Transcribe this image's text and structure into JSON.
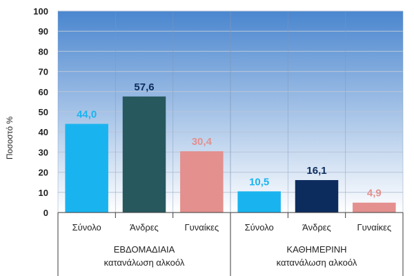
{
  "chart_data": {
    "type": "bar",
    "ylabel": "Ποσοστό %",
    "ylim": [
      0,
      100
    ],
    "yticks": [
      0,
      10,
      20,
      30,
      40,
      50,
      60,
      70,
      80,
      90,
      100
    ],
    "grid": true,
    "groups": [
      {
        "label_lines": [
          "ΕΒΔΟΜΑΔΙΑΙΑ",
          "κατανάλωση αλκοόλ"
        ],
        "bars": [
          {
            "category": "Σύνολο",
            "value": 44.0,
            "value_label": "44,0",
            "color": "#19b4f0",
            "label_color": "#19b4f0"
          },
          {
            "category": "Άνδρες",
            "value": 57.6,
            "value_label": "57,6",
            "color": "#27585e",
            "label_color": "#0d2c5e"
          },
          {
            "category": "Γυναίκες",
            "value": 30.4,
            "value_label": "30,4",
            "color": "#e3908e",
            "label_color": "#e3908e"
          }
        ]
      },
      {
        "label_lines": [
          "ΚΑΘΗΜΕΡΙΝΗ",
          "κατανάλωση αλκοόλ"
        ],
        "bars": [
          {
            "category": "Σύνολο",
            "value": 10.5,
            "value_label": "10,5",
            "color": "#19b4f0",
            "label_color": "#19b4f0"
          },
          {
            "category": "Άνδρες",
            "value": 16.1,
            "value_label": "16,1",
            "color": "#0d2c5e",
            "label_color": "#0d2c5e"
          },
          {
            "category": "Γυναίκες",
            "value": 4.9,
            "value_label": "4,9",
            "color": "#e3908e",
            "label_color": "#e3908e"
          }
        ]
      }
    ],
    "colors": {
      "plot_bg_top": "#4a86cf",
      "plot_bg_bottom": "#ffffff",
      "gridline": "#b9c6d8",
      "axis": "#3a3a3a"
    }
  }
}
